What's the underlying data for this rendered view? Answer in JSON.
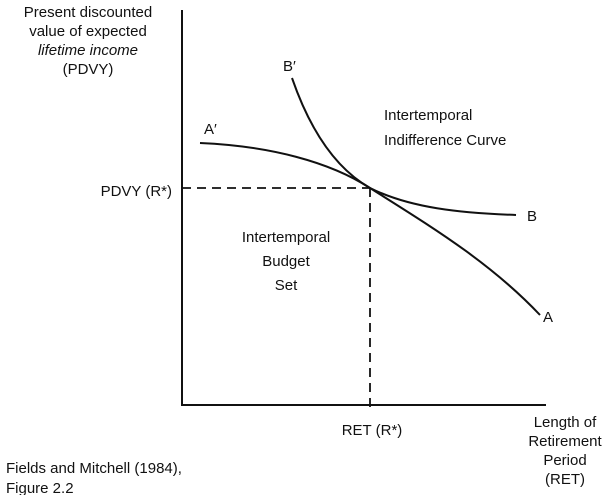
{
  "y_axis_label": [
    "Present discounted",
    "value of expected",
    "lifetime income",
    "(PDVY)"
  ],
  "x_axis_label": [
    "Length of",
    "Retirement",
    "Period",
    "(RET)"
  ],
  "curve_labels": {
    "a_start": "A′",
    "a_end": "A",
    "b_start": "B′",
    "b_end": "B"
  },
  "indifference_label": [
    "Intertemporal",
    "Indifference Curve"
  ],
  "budget_label": [
    "Intertemporal",
    "Budget",
    "Set"
  ],
  "y_point_label": "PDVY (R*)",
  "x_point_label": "RET (R*)",
  "source": [
    "Fields and Mitchell (1984),",
    "Figure 2.2"
  ]
}
